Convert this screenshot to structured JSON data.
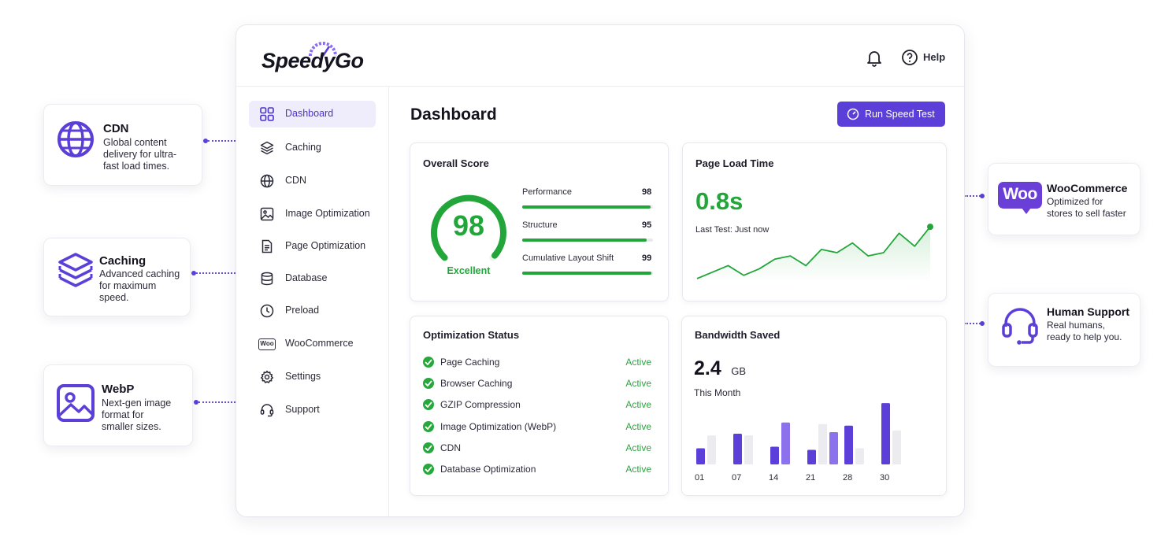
{
  "colors": {
    "accent": "#5b3fd8",
    "success": "#22a63a",
    "text": "#1d1d2b"
  },
  "callouts": {
    "cdn": {
      "title": "CDN",
      "desc_lines": [
        "Global content",
        "delivery for ultra-",
        "fast load times."
      ],
      "icon": "globe-icon"
    },
    "caching": {
      "title": "Caching",
      "desc_lines": [
        "Advanced caching",
        "for maximum",
        "speed."
      ],
      "icon": "layers-icon"
    },
    "webp": {
      "title": "WebP",
      "desc_lines": [
        "Next-gen image",
        "format for",
        "smaller sizes."
      ],
      "icon": "image-icon"
    },
    "woocommerce": {
      "title": "WooCommerce",
      "desc_lines": [
        "Optimized for",
        "stores to sell faster"
      ],
      "icon": "woo-logo",
      "logo_text": "Woo"
    },
    "support": {
      "title": "Human Support",
      "desc_lines": [
        "Real humans,",
        "ready to help you."
      ],
      "icon": "headset-icon"
    }
  },
  "app": {
    "brand": "SpeedyGo",
    "help_label": "Help",
    "sidebar": {
      "items": [
        {
          "label": "Dashboard",
          "icon": "grid-icon",
          "active": true
        },
        {
          "label": "Caching",
          "icon": "layers-icon"
        },
        {
          "label": "CDN",
          "icon": "globe-icon"
        },
        {
          "label": "Image Optimization",
          "icon": "image-icon"
        },
        {
          "label": "Page Optimization",
          "icon": "document-icon"
        },
        {
          "label": "Database",
          "icon": "database-icon"
        },
        {
          "label": "Preload",
          "icon": "clock-icon"
        },
        {
          "label": "WooCommerce",
          "icon": "woo-icon",
          "logo_text": "Woo"
        },
        {
          "label": "Settings",
          "icon": "gear-icon"
        },
        {
          "label": "Support",
          "icon": "headset-icon"
        }
      ]
    },
    "main": {
      "title": "Dashboard",
      "run_button": "Run Speed Test",
      "overall": {
        "title": "Overall Score",
        "score": "98",
        "score_value": 98,
        "grade": "Excellent",
        "metrics": [
          {
            "label": "Performance",
            "value": "98",
            "pct": 98
          },
          {
            "label": "Structure",
            "value": "95",
            "pct": 95
          },
          {
            "label": "Cumulative Layout Shift",
            "value": "99",
            "pct": 99
          }
        ]
      },
      "load_time": {
        "title": "Page Load Time",
        "value": "0.8s",
        "subtitle": "Last Test: Just now"
      },
      "status": {
        "title": "Optimization Status",
        "items": [
          {
            "label": "Page Caching",
            "state": "Active"
          },
          {
            "label": "Browser Caching",
            "state": "Active"
          },
          {
            "label": "GZIP Compression",
            "state": "Active"
          },
          {
            "label": "Image Optimization (WebP)",
            "state": "Active"
          },
          {
            "label": "CDN",
            "state": "Active"
          },
          {
            "label": "Database Optimization",
            "state": "Active"
          }
        ]
      },
      "bandwidth": {
        "title": "Bandwidth Saved",
        "value": "2.4",
        "unit": "GB",
        "period": "This Month"
      }
    }
  },
  "chart_data": [
    {
      "type": "line",
      "title": "Page Load Time",
      "x": [
        1,
        2,
        3,
        4,
        5,
        6,
        7,
        8,
        9,
        10,
        11,
        12,
        13,
        14,
        15,
        16
      ],
      "values": [
        1,
        3,
        5,
        2,
        4,
        7,
        8,
        5,
        10,
        9,
        12,
        8,
        9,
        15,
        11,
        17
      ],
      "ylim": [
        0,
        18
      ],
      "grid": false,
      "fill": true
    },
    {
      "type": "bar",
      "title": "Bandwidth Saved",
      "tick_labels": [
        "01",
        "07",
        "14",
        "21",
        "28",
        "30"
      ],
      "series": [
        {
          "values": [
            10,
            19,
            11,
            9,
            24,
            38
          ]
        },
        {
          "values": [
            18,
            18,
            0,
            25,
            10,
            21
          ]
        },
        {
          "values": [
            0,
            0,
            26,
            20,
            0,
            0
          ]
        }
      ],
      "ylim": [
        0,
        40
      ]
    }
  ]
}
